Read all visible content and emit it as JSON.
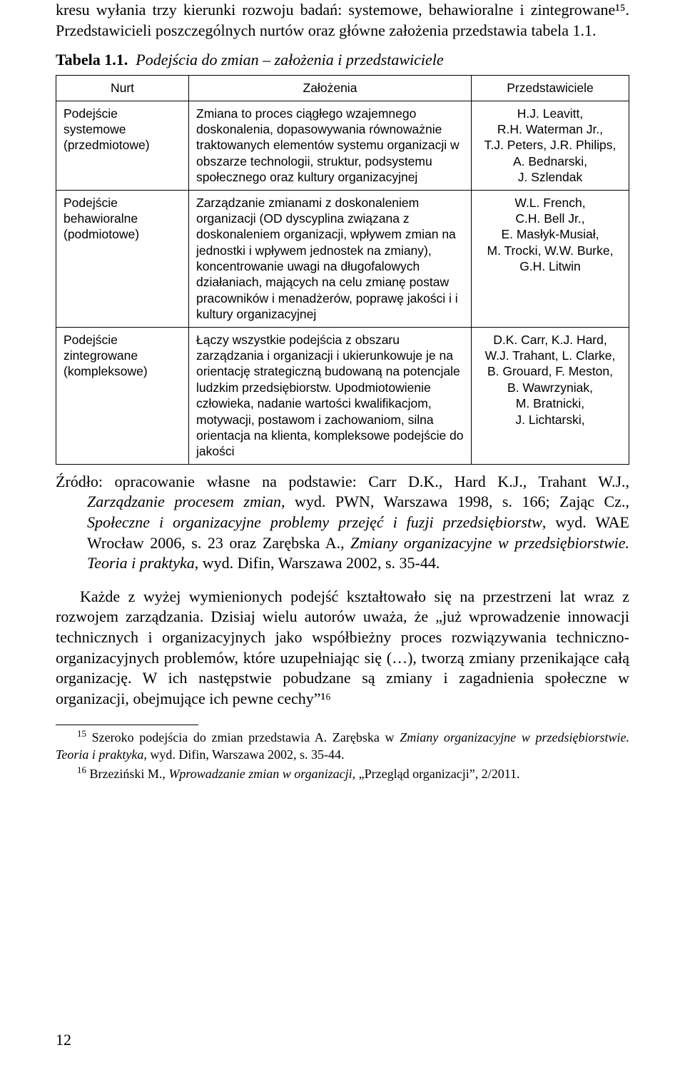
{
  "intro": "kresu wyłania trzy kierunki rozwoju badań: systemowe, behawioralne i zintegrowane¹⁵. Przedstawicieli poszczególnych nurtów oraz główne założenia przedstawia tabela 1.1.",
  "table_caption_bold": "Tabela 1.1.",
  "table_caption_italic": "Podejścia do zmian – założenia i przedstawiciele",
  "table": {
    "headers": {
      "c1": "Nurt",
      "c2": "Założenia",
      "c3": "Przedstawiciele"
    },
    "rows": [
      {
        "c1": "Podejście systemowe (przedmiotowe)",
        "c2": "Zmiana to proces ciągłego wzajemnego doskonalenia, dopasowywania równoważnie traktowanych elementów systemu organizacji w obszarze technologii, struktur, podsystemu społecznego oraz kultury organizacyjnej",
        "c3": "H.J. Leavitt,\nR.H. Waterman Jr.,\nT.J. Peters, J.R. Philips,\nA. Bednarski,\nJ. Szlendak"
      },
      {
        "c1": "Podejście behawioralne (podmiotowe)",
        "c2": "Zarządzanie zmianami z doskonaleniem organizacji (OD dyscyplina związana z doskonaleniem organizacji, wpływem zmian na jednostki i wpływem jednostek na zmiany), koncentrowanie uwagi na długofalowych działaniach, mających na celu zmianę postaw pracowników i menadżerów, poprawę jakości i i kultury organizacyjnej",
        "c3": "W.L. French,\nC.H. Bell Jr.,\nE. Masłyk-Musiał,\nM. Trocki, W.W. Burke,\nG.H. Litwin"
      },
      {
        "c1": "Podejście zintegrowane (kompleksowe)",
        "c2": "Łączy wszystkie podejścia z obszaru zarządzania i organizacji i ukierunkowuje je na orientację strategiczną budowaną na potencjale ludzkim przedsiębiorstw. Upodmiotowienie człowieka, nadanie wartości kwalifikacjom, motywacji, postawom i zachowaniom, silna orientacja na klienta, kompleksowe podejście do jakości",
        "c3": "D.K. Carr, K.J. Hard,\nW.J. Trahant, L. Clarke,\nB. Grouard, F. Meston,\nB. Wawrzyniak,\nM. Bratnicki,\nJ. Lichtarski,"
      }
    ]
  },
  "source_label": "Źródło: opracowanie własne na podstawie: Carr D.K., Hard K.J., Trahant W.J., ",
  "source_ital1": "Zarządzanie procesem zmian",
  "source_mid1": ", wyd. PWN, Warszawa 1998, s. 166; Zając Cz., ",
  "source_ital2": "Społeczne i organizacyjne problemy przejęć i fuzji przedsiębiorstw",
  "source_mid2": ", wyd. WAE Wrocław 2006, s. 23 oraz Zarębska A., ",
  "source_ital3": "Zmiany organizacyjne w przedsiębiorstwie. Teoria i praktyka",
  "source_end": ", wyd. Difin, Warszawa 2002, s. 35-44.",
  "after_para": "Każde z wyżej wymienionych podejść kształtowało się na przestrzeni lat wraz z rozwojem zarządzania. Dzisiaj wielu autorów uważa, że „już wprowadzenie innowacji technicznych i organizacyjnych jako współbieżny proces rozwiązywania techniczno-organizacyjnych problemów, które uzupełniając się (…), tworzą zmiany przenikające całą organizację. W ich następstwie pobudzane są zmiany i zagadnienia społeczne w organizacji, obejmujące ich pewne cechy”¹⁶",
  "fn15_a": "Szeroko podejścia do zmian przedstawia A. Zarębska w ",
  "fn15_i": "Zmiany organizacyjne w przedsiębiorstwie. Teoria i praktyka",
  "fn15_b": ", wyd. Difin, Warszawa 2002, s. 35-44.",
  "fn16_a": "Brzeziński M., ",
  "fn16_i": "Wprowadzanie zmian w organizacji",
  "fn16_b": ", „Przegląd organizacji”, 2/2011.",
  "pagenum": "12",
  "sup15": "15",
  "sup16": "16"
}
